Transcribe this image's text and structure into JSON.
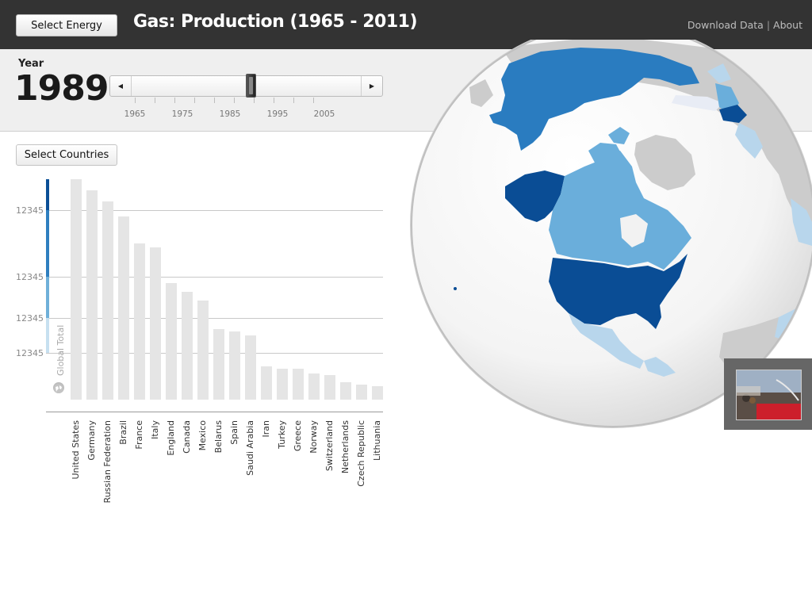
{
  "header": {
    "select_energy_label": "Select Energy",
    "title": "Gas: Production (1965 - 2011)",
    "download_link": "Download Data",
    "separator": "|",
    "about_link": "About"
  },
  "year_control": {
    "label": "Year",
    "value": "1989",
    "range": [
      1965,
      2011
    ],
    "tick_labels": [
      "1965",
      "1975",
      "1985",
      "1995",
      "2005"
    ]
  },
  "select_countries_label": "Select Countries",
  "chart_data": {
    "type": "bar",
    "title": "",
    "ylabel": "",
    "y_tick_labels": [
      "12345",
      "12345",
      "12345",
      "12345"
    ],
    "global_total_label": "Global Total",
    "categories": [
      "United States",
      "Germany",
      "Russian Federation",
      "Brazil",
      "France",
      "Italy",
      "England",
      "Canada",
      "Mexico",
      "Belarus",
      "Spain",
      "Saudi Arabia",
      "Iran",
      "Turkey",
      "Greece",
      "Norway",
      "Switzerland",
      "Netherlands",
      "Czech Republic",
      "Lithuania"
    ],
    "values": [
      100,
      95,
      90,
      83,
      71,
      69,
      53,
      49,
      45,
      32,
      31,
      29,
      15,
      14,
      14,
      12,
      11,
      8,
      7,
      6
    ],
    "bar_color": "#e5e5e5",
    "legend_colors": [
      "#0b4f96",
      "#2f7fbf",
      "#6fb0d9",
      "#c7e0f0"
    ]
  },
  "map": {
    "projection": "orthographic globe",
    "highlighted_colors": {
      "darkest": "#0a4d95",
      "dark": "#2a7cc0",
      "medium": "#6aaedb",
      "light": "#b8d6ec",
      "no_data": "#cccccc"
    }
  },
  "thumbnail": {
    "icon": "photo-thumbnail"
  }
}
